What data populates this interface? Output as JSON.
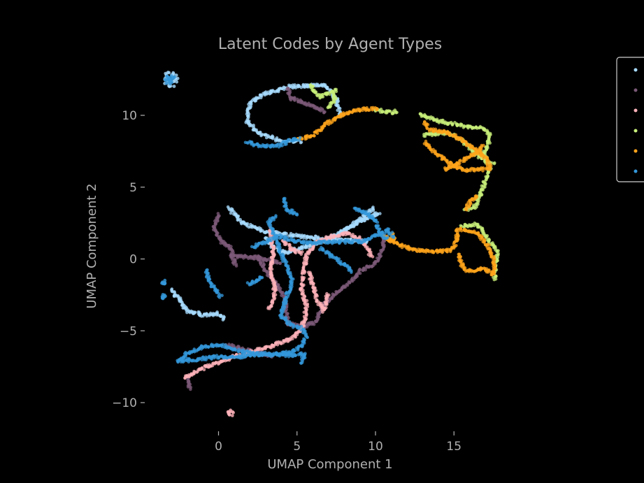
{
  "chart_data": {
    "type": "scatter",
    "title": "Latent Codes by Agent Types",
    "xlabel": "UMAP Component 1",
    "ylabel": "UMAP Component 2",
    "xlim": [
      -4.1,
      19.2
    ],
    "ylim": [
      -12.2,
      13.4
    ],
    "x_ticks": [
      0,
      5,
      10,
      15
    ],
    "y_ticks": [
      10,
      5,
      0,
      -5,
      -10
    ],
    "grid": false,
    "legend": {
      "placement": "top-right",
      "entries": [
        "",
        "",
        "",
        "",
        "",
        ""
      ]
    },
    "series": [
      {
        "color": "#a8dcff",
        "paths": [
          [
            [
              9.5,
              1.2
            ],
            [
              7,
              1.4
            ],
            [
              5,
              1.6
            ],
            [
              3,
              1.9
            ],
            [
              1.5,
              2.5
            ],
            [
              0.6,
              3.6
            ]
          ],
          [
            [
              7.8,
              9.9
            ],
            [
              7.5,
              11.1
            ],
            [
              6.8,
              12.1
            ],
            [
              4.5,
              12.0
            ],
            [
              2.7,
              11.4
            ],
            [
              2,
              10.8
            ],
            [
              1.8,
              9.6
            ],
            [
              2.5,
              8.8
            ],
            [
              4,
              8.2
            ],
            [
              5.3,
              8.2
            ]
          ],
          [
            [
              3,
              1.5
            ],
            [
              3.5,
              0.8
            ],
            [
              4.2,
              0.4
            ],
            [
              5,
              0.7
            ],
            [
              6,
              1
            ],
            [
              7,
              1.4
            ],
            [
              8.5,
              2.3
            ],
            [
              9.5,
              2.9
            ],
            [
              10.3,
              3.2
            ]
          ],
          [
            [
              -3,
              -2.2
            ],
            [
              -2.5,
              -2.8
            ],
            [
              -2,
              -3.6
            ],
            [
              -1,
              -3.9
            ],
            [
              0,
              -3.8
            ],
            [
              0.4,
              -4.2
            ]
          ],
          [
            [
              9.9,
              3.5
            ],
            [
              9.1,
              2.8
            ],
            [
              8.2,
              2.1
            ],
            [
              7.5,
              1.6
            ]
          ]
        ],
        "blobs": [
          [
            -3.05,
            12.5,
            0.5
          ]
        ]
      },
      {
        "color": "#7c5a78",
        "paths": [
          [
            [
              0,
              3.1
            ],
            [
              -0.3,
              2.2
            ],
            [
              0.2,
              1.2
            ],
            [
              0.8,
              0.7
            ],
            [
              0.9,
              0.2
            ],
            [
              1.1,
              -0.5
            ]
          ],
          [
            [
              4.4,
              11.9
            ],
            [
              4.6,
              11.2
            ],
            [
              5.4,
              10.9
            ],
            [
              6.3,
              10.5
            ],
            [
              6.8,
              10.2
            ]
          ],
          [
            [
              2.5,
              0.2
            ],
            [
              3,
              -0.8
            ],
            [
              3.7,
              -1.8
            ],
            [
              4.2,
              -2.7
            ],
            [
              4.4,
              -4.5
            ],
            [
              5.4,
              -4.7
            ],
            [
              6.2,
              -4.4
            ],
            [
              6.7,
              -3.2
            ],
            [
              7.5,
              -2.4
            ],
            [
              8.5,
              -1.5
            ],
            [
              9,
              -0.8
            ],
            [
              10,
              -0.3
            ],
            [
              10.4,
              0.6
            ],
            [
              10.6,
              1.7
            ]
          ],
          [
            [
              0.8,
              0.2
            ],
            [
              2.5,
              0.1
            ],
            [
              4,
              -0.3
            ]
          ],
          [
            [
              -2,
              -8.3
            ],
            [
              -1.8,
              -9.1
            ]
          ],
          [
            [
              0.5,
              -6
            ],
            [
              2,
              -6.4
            ],
            [
              3.5,
              -6.8
            ]
          ]
        ]
      },
      {
        "color": "#ffb3ba",
        "paths": [
          [
            [
              -2.2,
              -8.3
            ],
            [
              -1,
              -7.6
            ],
            [
              1,
              -6.8
            ],
            [
              3,
              -6.2
            ],
            [
              4.5,
              -5.6
            ],
            [
              5.2,
              -5.1
            ],
            [
              5.5,
              -4.2
            ],
            [
              5.6,
              -3.2
            ],
            [
              5.3,
              -2.2
            ],
            [
              5.4,
              -1.1
            ],
            [
              5.6,
              0.3
            ],
            [
              6.2,
              1.1
            ],
            [
              7,
              1.5
            ],
            [
              8.2,
              1.8
            ],
            [
              9,
              1.4
            ],
            [
              9.5,
              0.7
            ],
            [
              9.8,
              0.1
            ]
          ],
          [
            [
              3.3,
              2.1
            ],
            [
              3.4,
              1.2
            ],
            [
              3.5,
              0.4
            ],
            [
              3.3,
              -0.6
            ],
            [
              3.5,
              -1.6
            ],
            [
              3.6,
              -2.6
            ],
            [
              3.2,
              -3.6
            ]
          ],
          [
            [
              5.8,
              -0.9
            ],
            [
              6,
              -1.9
            ],
            [
              6.3,
              -2.9
            ],
            [
              6.7,
              -3.6
            ],
            [
              7,
              -2.4
            ]
          ],
          [
            [
              4.1,
              1.3
            ],
            [
              4.8,
              0.6
            ],
            [
              5.4,
              0.4
            ]
          ]
        ],
        "blobs": [
          [
            0.8,
            -10.7,
            0.2
          ]
        ]
      },
      {
        "color": "#c8ef7a",
        "paths": [
          [
            [
              5.8,
              12.1
            ],
            [
              6.5,
              11.3
            ],
            [
              7.2,
              11.6
            ],
            [
              7.4,
              11.8
            ],
            [
              7.4,
              11.1
            ],
            [
              7,
              10.4
            ]
          ],
          [
            [
              10,
              10.4
            ],
            [
              11,
              10.2
            ],
            [
              11.5,
              10.3
            ]
          ],
          [
            [
              12.8,
              10.1
            ],
            [
              14,
              9.6
            ],
            [
              15,
              9.4
            ],
            [
              16,
              9.2
            ],
            [
              16.8,
              9.1
            ],
            [
              17.3,
              8.6
            ],
            [
              17.2,
              8.1
            ],
            [
              16.9,
              7.3
            ],
            [
              17.2,
              6.8
            ],
            [
              17.6,
              6.7
            ]
          ],
          [
            [
              17.3,
              6.3
            ],
            [
              17,
              5.5
            ],
            [
              16.7,
              4.5
            ],
            [
              16.3,
              3.6
            ],
            [
              15.6,
              3.4
            ]
          ],
          [
            [
              15.5,
              2.3
            ],
            [
              16.5,
              2.4
            ],
            [
              17,
              1.6
            ],
            [
              17.8,
              0.5
            ],
            [
              17.6,
              -0.8
            ],
            [
              17.6,
              -1.5
            ]
          ],
          [
            [
              13.1,
              8.6
            ],
            [
              14.5,
              8.8
            ],
            [
              15.5,
              8.3
            ],
            [
              16.3,
              7.4
            ],
            [
              17.1,
              6.7
            ]
          ]
        ]
      },
      {
        "color": "#ffa41b",
        "paths": [
          [
            [
              5.1,
              8.3
            ],
            [
              6,
              8.6
            ],
            [
              7,
              9.5
            ],
            [
              8,
              10.1
            ],
            [
              9,
              10.4
            ],
            [
              10.2,
              10.5
            ]
          ],
          [
            [
              13.1,
              9.5
            ],
            [
              13.5,
              9
            ],
            [
              14.6,
              8.8
            ],
            [
              15.5,
              8.3
            ],
            [
              16.5,
              7.5
            ],
            [
              17.1,
              7
            ],
            [
              17.3,
              6.3
            ],
            [
              16.5,
              6.2
            ],
            [
              15.5,
              6.2
            ],
            [
              14.5,
              6.8
            ],
            [
              13.6,
              7.6
            ],
            [
              13.1,
              8.2
            ]
          ],
          [
            [
              16.8,
              7.9
            ],
            [
              16.5,
              7.4
            ],
            [
              15.8,
              7.0
            ],
            [
              15,
              6.5
            ],
            [
              14.3,
              6.2
            ]
          ],
          [
            [
              16.5,
              4.4
            ],
            [
              16.1,
              4.1
            ],
            [
              15.7,
              3.4
            ]
          ],
          [
            [
              12.5,
              0.6
            ],
            [
              13.8,
              0.5
            ],
            [
              14.8,
              0.6
            ],
            [
              15.2,
              1.3
            ],
            [
              15.2,
              2.0
            ],
            [
              15.4,
              2.1
            ],
            [
              16.5,
              1.8
            ],
            [
              17.2,
              0.8
            ],
            [
              17.6,
              -0.3
            ],
            [
              17.5,
              -1.1
            ],
            [
              16.8,
              -0.6
            ],
            [
              16.3,
              -0.9
            ],
            [
              15.6,
              -0.7
            ],
            [
              15.3,
              0.4
            ]
          ],
          [
            [
              10.5,
              1.6
            ],
            [
              11.5,
              1.0
            ],
            [
              12.5,
              0.6
            ]
          ]
        ],
        "blobs": [
          [
            11.0,
            1.5,
            0.3
          ]
        ]
      },
      {
        "color": "#3498db",
        "paths": [
          [
            [
              -2.6,
              -7.1
            ],
            [
              -2,
              -6.6
            ],
            [
              -1,
              -6.1
            ],
            [
              0,
              -6.0
            ],
            [
              0.5,
              -6.1
            ],
            [
              1.3,
              -6.4
            ],
            [
              2.5,
              -6.6
            ],
            [
              3.5,
              -6.7
            ],
            [
              4.5,
              -6.5
            ],
            [
              5.3,
              -6.1
            ],
            [
              5.6,
              -5.4
            ],
            [
              5.3,
              -4.8
            ],
            [
              4.6,
              -4.6
            ],
            [
              4,
              -3.9
            ],
            [
              4.3,
              -2.7
            ],
            [
              4.7,
              -1.6
            ],
            [
              4.4,
              -0.6
            ],
            [
              3.9,
              0.6
            ],
            [
              3.6,
              1.6
            ],
            [
              3.2,
              2.6
            ],
            [
              3.7,
              3.0
            ]
          ],
          [
            [
              -2.5,
              -7.1
            ],
            [
              -1.4,
              -7.0
            ],
            [
              0,
              -6.8
            ],
            [
              1.5,
              -6.8
            ],
            [
              3,
              -6.6
            ],
            [
              4.5,
              -6.7
            ],
            [
              5.5,
              -6.6
            ],
            [
              5.2,
              -7.3
            ]
          ],
          [
            [
              -0.8,
              -0.8
            ],
            [
              -0.6,
              -1.6
            ],
            [
              0,
              -2.4
            ],
            [
              0.2,
              -2.7
            ]
          ],
          [
            [
              1.8,
              8.1
            ],
            [
              2.7,
              7.9
            ],
            [
              3.8,
              7.9
            ],
            [
              4.7,
              8.3
            ],
            [
              5.2,
              8.4
            ]
          ],
          [
            [
              2.2,
              0.8
            ],
            [
              3.8,
              1.6
            ],
            [
              5,
              1.2
            ],
            [
              6,
              1.1
            ],
            [
              7.5,
              1.2
            ],
            [
              8.5,
              1.2
            ],
            [
              9.2,
              1.2
            ],
            [
              10,
              1.6
            ],
            [
              10.8,
              2.0
            ],
            [
              11.2,
              1.5
            ]
          ],
          [
            [
              4.2,
              4.2
            ],
            [
              4.3,
              3.5
            ],
            [
              4.8,
              3.2
            ],
            [
              5.0,
              3.0
            ]
          ],
          [
            [
              2.8,
              -1.3
            ],
            [
              2.3,
              -1.6
            ],
            [
              1.8,
              -1.8
            ]
          ],
          [
            [
              8.7,
              3.5
            ],
            [
              9.5,
              3.2
            ],
            [
              10,
              2.6
            ],
            [
              10.3,
              1.7
            ],
            [
              10.8,
              1.4
            ]
          ],
          [
            [
              6.5,
              0.7
            ],
            [
              7.5,
              0.0
            ],
            [
              8.2,
              -0.5
            ],
            [
              8.5,
              -0.9
            ]
          ]
        ],
        "blobs": [
          [
            -3.1,
            12.5,
            0.35
          ],
          [
            -3.5,
            -1.6,
            0.15
          ],
          [
            -3.5,
            -2.6,
            0.15
          ]
        ]
      }
    ]
  }
}
